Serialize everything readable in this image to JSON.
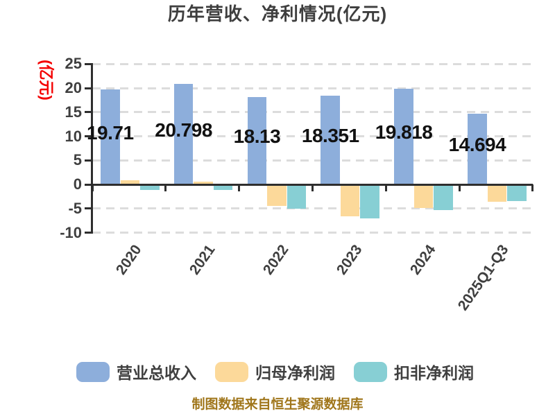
{
  "title": "历年营收、净利情况(亿元)",
  "y_axis_name": "(亿元)",
  "footer_note": "制图数据来自恒生聚源数据库",
  "colors": {
    "revenue_bar": "#8DAEDB",
    "net_profit_bar": "#FCD99A",
    "non_gaap_bar": "#87CFD4",
    "axis": "#2E2E2E",
    "grid": "#DCDCDC",
    "text": "#3F3F3F",
    "value_label": "#111111",
    "y_axis_name_color": "#F40000",
    "footer_color": "#A0761B"
  },
  "chart_data": {
    "type": "bar",
    "title": "历年营收、净利情况(亿元)",
    "categories": [
      "2020",
      "2021",
      "2022",
      "2023",
      "2024",
      "2025Q1-Q3"
    ],
    "series": [
      {
        "name": "营业总收入",
        "color": "#8DAEDB",
        "values": [
          19.71,
          20.798,
          18.13,
          18.351,
          19.818,
          14.694
        ],
        "data_labels": [
          "19.71",
          "20.798",
          "18.13",
          "18.351",
          "19.818",
          "14.694"
        ]
      },
      {
        "name": "归母净利润",
        "color": "#FCD99A",
        "values": [
          0.9,
          0.6,
          -4.4,
          -6.6,
          -4.9,
          -3.6
        ]
      },
      {
        "name": "扣非净利润",
        "color": "#87CFD4",
        "values": [
          -1.2,
          -1.1,
          -5.0,
          -7.1,
          -5.3,
          -3.4
        ]
      }
    ],
    "ylabel": "(亿元)",
    "ylim": [
      -10,
      25
    ],
    "yticks": [
      25,
      20,
      15,
      10,
      5,
      0,
      -5,
      -10
    ],
    "grid": "dashed-horizontal",
    "legend_position": "bottom",
    "data_source_note": "制图数据来自恒生聚源数据库"
  }
}
